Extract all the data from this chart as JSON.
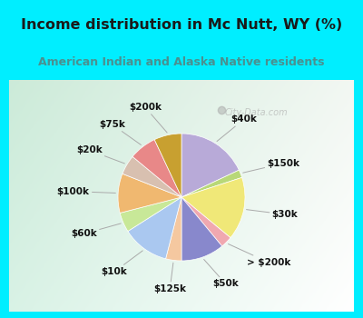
{
  "title": "Income distribution in Mc Nutt, WY (%)",
  "subtitle": "American Indian and Alaska Native residents",
  "title_color": "#1a1a1a",
  "subtitle_color": "#4a9090",
  "bg_cyan": "#00eeff",
  "chart_panel_color": "#d8f0e8",
  "watermark": "City-Data.com",
  "labels": [
    "$40k",
    "$150k",
    "$30k",
    "> $200k",
    "$50k",
    "$125k",
    "$10k",
    "$60k",
    "$100k",
    "$20k",
    "$75k",
    "$200k"
  ],
  "values": [
    18,
    2,
    16,
    3,
    11,
    4,
    12,
    5,
    10,
    5,
    7,
    7
  ],
  "colors": [
    "#b8aad8",
    "#b8d878",
    "#f0e878",
    "#f0a8b0",
    "#8888cc",
    "#f5c8a0",
    "#aac8f0",
    "#c8e898",
    "#f0b870",
    "#d8c0b0",
    "#e88888",
    "#c8a030"
  ],
  "start_angle": 90,
  "label_fontsize": 7.5,
  "title_fontsize": 11.5,
  "subtitle_fontsize": 9.0
}
